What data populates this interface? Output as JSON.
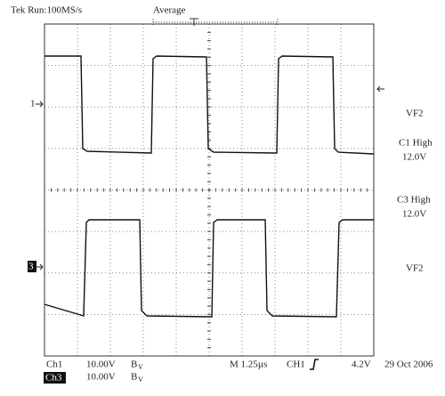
{
  "header": {
    "status": "Tek Run:100MS/s",
    "mode": "Average"
  },
  "markers": {
    "ch1": "1",
    "ch3": "3"
  },
  "side_labels": [
    "VF2",
    "C1 High",
    "12.0V",
    "C3 High",
    "12.0V",
    "VF2"
  ],
  "footer": {
    "ch1": {
      "name": "Ch1",
      "scale": "10.00V",
      "bw": "B",
      "bw_sub": "V"
    },
    "ch3": {
      "name": "Ch3",
      "scale": "10.00V",
      "bw": "B",
      "bw_sub": "V"
    },
    "timebase": "M 1.25µs",
    "trigger_source": "CH1",
    "trigger_level": "4.2V",
    "date": "29 Oct 2006"
  }
}
